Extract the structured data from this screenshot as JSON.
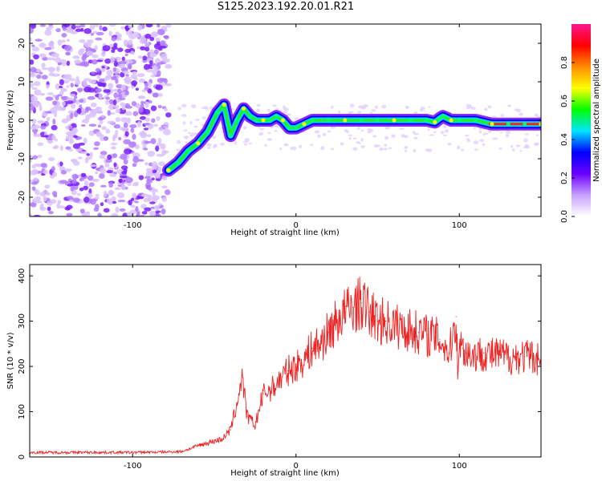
{
  "title": "S125.2023.192.20.01.R21",
  "chart_data": [
    {
      "type": "heatmap",
      "xlabel": "Height of straight line (km)",
      "ylabel": "Frequency (Hz)",
      "xlim": [
        -163,
        150
      ],
      "ylim": [
        -25,
        25
      ],
      "xticks": [
        -100,
        0,
        100
      ],
      "yticks": [
        -20,
        -10,
        0,
        10,
        20
      ],
      "colorbar": {
        "label": "Normalized spectral amplitude",
        "range": [
          0,
          1
        ],
        "ticks": [
          "0.0",
          "0.2",
          "0.4",
          "0.6",
          "0.8"
        ],
        "colors": [
          "#ffffff",
          "#c8a0ff",
          "#6a00ff",
          "#0000ff",
          "#00e5ff",
          "#00ff00",
          "#ffff00",
          "#ff8c00",
          "#ff0000",
          "#ff1493"
        ]
      },
      "ridge": {
        "x": [
          -78,
          -72,
          -66,
          -60,
          -54,
          -48,
          -44,
          -40,
          -36,
          -32,
          -28,
          -24,
          -20,
          -16,
          -12,
          -8,
          -4,
          0,
          5,
          10,
          20,
          30,
          40,
          50,
          60,
          70,
          80,
          85,
          88,
          90,
          95,
          100,
          110,
          120,
          130,
          140,
          150
        ],
        "y": [
          -13,
          -11,
          -8,
          -6,
          -3,
          2,
          4,
          -4,
          0,
          3,
          1,
          0,
          0,
          0,
          1,
          0,
          -2,
          -2,
          -1,
          0,
          0,
          0,
          0,
          0,
          0,
          0,
          0,
          -0.5,
          0.5,
          1,
          0,
          0,
          0,
          -1,
          -1,
          -1,
          -1
        ]
      }
    },
    {
      "type": "line",
      "xlabel": "Height of straight line (km)",
      "ylabel": "SNR (10 * v/v)",
      "xlim": [
        -163,
        150
      ],
      "ylim": [
        0,
        425
      ],
      "xticks": [
        -100,
        0,
        100
      ],
      "yticks": [
        0,
        100,
        200,
        300,
        400
      ],
      "color": "#ee2222",
      "series": [
        {
          "x": [
            -163,
            -140,
            -120,
            -100,
            -80,
            -70,
            -65,
            -60,
            -55,
            -50,
            -45,
            -40,
            -36,
            -33,
            -30,
            -25,
            -20,
            -15,
            -10,
            -5,
            0,
            5,
            10,
            15,
            20,
            25,
            30,
            35,
            40,
            45,
            50,
            55,
            60,
            65,
            70,
            75,
            80,
            85,
            88,
            90,
            92,
            94,
            96,
            97,
            98,
            99,
            100,
            102,
            105,
            110,
            115,
            120,
            125,
            130,
            140,
            150
          ],
          "y": [
            10,
            10,
            10,
            10,
            11,
            12,
            18,
            25,
            30,
            35,
            40,
            60,
            120,
            180,
            90,
            70,
            140,
            150,
            170,
            190,
            200,
            215,
            240,
            250,
            275,
            300,
            320,
            330,
            340,
            320,
            300,
            300,
            290,
            285,
            280,
            275,
            270,
            265,
            260,
            250,
            240,
            230,
            270,
            290,
            310,
            200,
            250,
            240,
            230,
            225,
            230,
            225,
            225,
            220,
            222,
            218
          ]
        }
      ]
    }
  ]
}
